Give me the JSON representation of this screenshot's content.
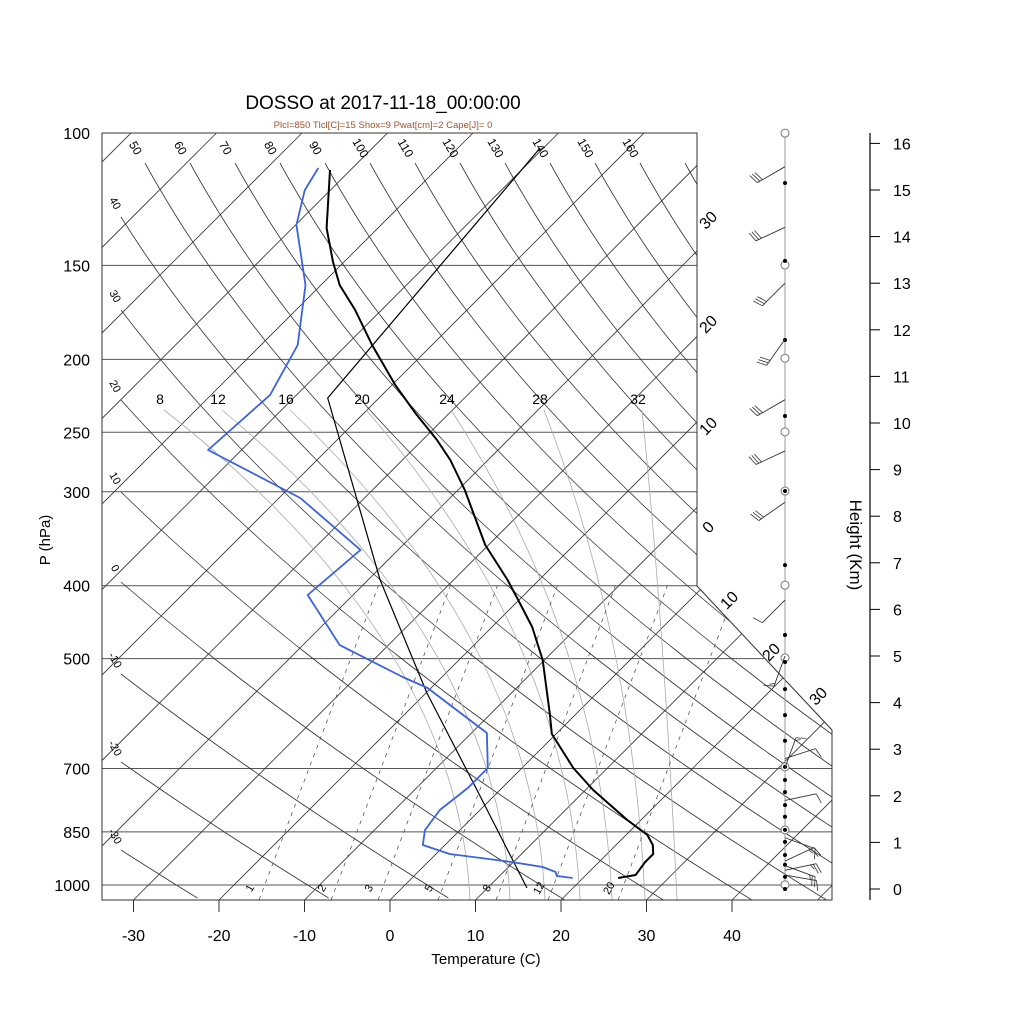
{
  "chart_data": {
    "type": "skewt",
    "title": "DOSSO at 2017-11-18_00:00:00",
    "subtitle": "Plcl=850 Tlcl[C]=15 Shox=9 Pwat[cm]=2 Cape[J]= 0",
    "xlabel": "Temperature (C)",
    "ylabel": "P (hPa)",
    "y2label": "Height (Km)",
    "x_ticks": [
      -30,
      -20,
      -10,
      0,
      10,
      20,
      30,
      40
    ],
    "p_ticks": [
      100,
      150,
      200,
      250,
      300,
      400,
      500,
      700,
      850,
      1000
    ],
    "height_ticks": [
      0,
      1,
      2,
      3,
      4,
      5,
      6,
      7,
      8,
      9,
      10,
      11,
      12,
      13,
      14,
      15,
      16
    ],
    "xlim": [
      -30,
      50
    ],
    "plim": [
      1050,
      100
    ],
    "temperature": {
      "p": [
        112,
        133.8,
        148.4,
        159.3,
        171.9,
        191.4,
        216.4,
        235.7,
        256,
        272.2,
        298.4,
        353,
        392.9,
        417.8,
        453.8,
        502.2,
        590.5,
        629.7,
        698.9,
        747.5,
        819.6,
        858,
        884.7,
        909.4,
        932,
        969.8,
        978.8
      ],
      "t": [
        -92.4,
        -86,
        -81.3,
        -77.8,
        -73.1,
        -67,
        -59.6,
        -54,
        -48.3,
        -44.4,
        -39.2,
        -30.4,
        -23.7,
        -20.1,
        -15.3,
        -10.2,
        -3.2,
        -0.5,
        6,
        10.9,
        18.4,
        22.5,
        24.3,
        25.4,
        25.4,
        25.8,
        24.1
      ]
    },
    "dewpoint": {
      "p": [
        111.3,
        119.1,
        132.5,
        159.3,
        191.4,
        223,
        264,
        305.8,
        358.4,
        411.5,
        479.7,
        528.9,
        547,
        627.8,
        698.9,
        743,
        794.9,
        844.9,
        884.7,
        909.4,
        932,
        946.4,
        961,
        972.8,
        978.8
      ],
      "t": [
        -94,
        -93,
        -89.9,
        -81.8,
        -75.7,
        -73.1,
        -73.9,
        -57.5,
        -44.4,
        -45.3,
        -35.7,
        -24.6,
        -20.4,
        -8.2,
        -4,
        -4,
        -4.7,
        -4.1,
        -2.6,
        1.6,
        9.8,
        14,
        16.1,
        16.7,
        18.8
      ]
    },
    "parcel": {
      "p": [
        1009,
        747.5,
        555.5,
        392.9,
        225.1,
        104.7
      ],
      "t": [
        14.6,
        -2.7,
        -19.9,
        -38.6,
        -66,
        -70.4
      ]
    },
    "dry_adiabat_labels_top": [
      50,
      60,
      70,
      80,
      90,
      100,
      110,
      120,
      130,
      140,
      150,
      160
    ],
    "dry_adiabat_labels_left": [
      40,
      30,
      20,
      10,
      0,
      -10,
      -20,
      -30
    ],
    "moist_adiabat_labels": [
      8,
      12,
      16,
      20,
      24,
      28,
      32
    ],
    "mixing_ratio_labels": [
      1,
      2,
      3,
      5,
      8,
      12,
      20
    ],
    "isotherm_labels_right": [
      30,
      20,
      10,
      0
    ],
    "isotherm_labels_diag": [
      10,
      20,
      30
    ],
    "wind_barbs": [
      {
        "height_km": 15.5,
        "dir": 240,
        "speed": 30
      },
      {
        "height_km": 14.2,
        "dir": 245,
        "speed": 30
      },
      {
        "height_km": 13.0,
        "dir": 225,
        "speed": 30
      },
      {
        "height_km": 11.8,
        "dir": 215,
        "speed": 30
      },
      {
        "height_km": 10.5,
        "dir": 240,
        "speed": 30
      },
      {
        "height_km": 9.4,
        "dir": 245,
        "speed": 30
      },
      {
        "height_km": 8.3,
        "dir": 235,
        "speed": 30
      },
      {
        "height_km": 6.2,
        "dir": 225,
        "speed": 10
      },
      {
        "height_km": 5.0,
        "dir": 200,
        "speed": 5
      },
      {
        "height_km": 2.8,
        "dir": 72,
        "speed": 10
      },
      {
        "height_km": 2.6,
        "dir": 20,
        "speed": 5
      },
      {
        "height_km": 1.9,
        "dir": 78,
        "speed": 10
      },
      {
        "height_km": 1.1,
        "dir": 110,
        "speed": 10
      },
      {
        "height_km": 0.6,
        "dir": 65,
        "speed": 15
      },
      {
        "height_km": 0.5,
        "dir": 110,
        "speed": 15
      },
      {
        "height_km": 0.4,
        "dir": 78,
        "speed": 15
      },
      {
        "height_km": 0.3,
        "dir": 100,
        "speed": 10
      }
    ],
    "station_dots_km": [
      15.15,
      13.48,
      11.78,
      10.15,
      8.54,
      6.95,
      5.45,
      4.87,
      4.29,
      3.73,
      3.18,
      2.62,
      2.34,
      2.08,
      1.8,
      1.55,
      1.27,
      1.01,
      0.73,
      0.52,
      0.26,
      0
    ],
    "station_circles_km": [
      16.22,
      13.39,
      11.39,
      9.81,
      8.54,
      6.52,
      4.96,
      2.62,
      1.27,
      0.09
    ],
    "colors": {
      "temperature": "#000000",
      "dewpoint": "#3b63e0",
      "parcel": "#000000",
      "subtitle": "#a0522d",
      "grid": "#333333",
      "moist": "#aaaaaa"
    }
  }
}
